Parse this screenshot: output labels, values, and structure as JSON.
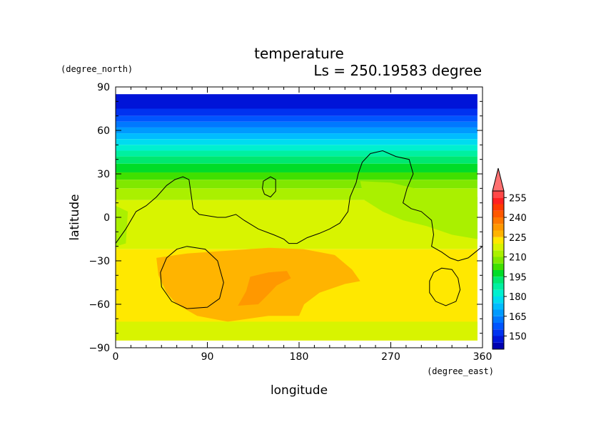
{
  "chart_data": {
    "type": "heatmap",
    "title": "temperature",
    "subtitle": "Ls = 250.19583 degree",
    "xlabel": "longitude",
    "ylabel": "latitude",
    "x_units": "(degree_east)",
    "y_units": "(degree_north)",
    "xlim": [
      0,
      360
    ],
    "ylim": [
      -90,
      90
    ],
    "x_ticks": [
      "0",
      "90",
      "180",
      "270",
      "360"
    ],
    "y_ticks": [
      "90",
      "60",
      "30",
      "0",
      "−30",
      "−60",
      "−90"
    ],
    "x_tick_values": [
      0,
      90,
      180,
      270,
      360
    ],
    "y_tick_values": [
      90,
      60,
      30,
      0,
      -30,
      -60,
      -90
    ],
    "colorbar": {
      "labels": [
        "255",
        "240",
        "225",
        "210",
        "195",
        "180",
        "165",
        "150"
      ],
      "label_values": [
        255,
        240,
        225,
        210,
        195,
        180,
        165,
        150
      ],
      "levels": [
        {
          "lo": 140,
          "hi": 145,
          "color": "#0000b0"
        },
        {
          "lo": 145,
          "hi": 150,
          "color": "#0014d8"
        },
        {
          "lo": 150,
          "hi": 155,
          "color": "#0032f0"
        },
        {
          "lo": 155,
          "hi": 160,
          "color": "#0055ff"
        },
        {
          "lo": 160,
          "hi": 165,
          "color": "#0078ff"
        },
        {
          "lo": 165,
          "hi": 170,
          "color": "#009aff"
        },
        {
          "lo": 170,
          "hi": 175,
          "color": "#00bcff"
        },
        {
          "lo": 175,
          "hi": 180,
          "color": "#00dcf0"
        },
        {
          "lo": 180,
          "hi": 185,
          "color": "#00f0d0"
        },
        {
          "lo": 185,
          "hi": 190,
          "color": "#00f0a0"
        },
        {
          "lo": 190,
          "hi": 195,
          "color": "#00e870"
        },
        {
          "lo": 195,
          "hi": 200,
          "color": "#00dc28"
        },
        {
          "lo": 200,
          "hi": 205,
          "color": "#40e000"
        },
        {
          "lo": 205,
          "hi": 210,
          "color": "#80e800"
        },
        {
          "lo": 210,
          "hi": 215,
          "color": "#aaf000"
        },
        {
          "lo": 215,
          "hi": 220,
          "color": "#d8f400"
        },
        {
          "lo": 220,
          "hi": 225,
          "color": "#ffe800"
        },
        {
          "lo": 225,
          "hi": 230,
          "color": "#ffb400"
        },
        {
          "lo": 230,
          "hi": 235,
          "color": "#ff9800"
        },
        {
          "lo": 235,
          "hi": 240,
          "color": "#ff7800"
        },
        {
          "lo": 240,
          "hi": 245,
          "color": "#ff5800"
        },
        {
          "lo": 245,
          "hi": 250,
          "color": "#ff3a00"
        },
        {
          "lo": 250,
          "hi": 255,
          "color": "#ff2020"
        },
        {
          "lo": 255,
          "hi": 260,
          "color": "#ff4848"
        }
      ],
      "extend_max_color": "#ff7070"
    },
    "latitude_bands": [
      {
        "lat_top": 85,
        "lat_bottom": 75,
        "color": "#0014d8"
      },
      {
        "lat_top": 75,
        "lat_bottom": 70,
        "color": "#0032f0"
      },
      {
        "lat_top": 70,
        "lat_bottom": 66,
        "color": "#0055ff"
      },
      {
        "lat_top": 66,
        "lat_bottom": 62,
        "color": "#0078ff"
      },
      {
        "lat_top": 62,
        "lat_bottom": 58,
        "color": "#009aff"
      },
      {
        "lat_top": 58,
        "lat_bottom": 54,
        "color": "#00bcff"
      },
      {
        "lat_top": 54,
        "lat_bottom": 50,
        "color": "#00dcf0"
      },
      {
        "lat_top": 50,
        "lat_bottom": 46,
        "color": "#00f0d0"
      },
      {
        "lat_top": 46,
        "lat_bottom": 42,
        "color": "#00f0a0"
      },
      {
        "lat_top": 42,
        "lat_bottom": 37,
        "color": "#00e870"
      },
      {
        "lat_top": 37,
        "lat_bottom": 31,
        "color": "#00dc28"
      },
      {
        "lat_top": 31,
        "lat_bottom": 26,
        "color": "#40e000"
      },
      {
        "lat_top": 26,
        "lat_bottom": 20,
        "color": "#80e800"
      },
      {
        "lat_top": 20,
        "lat_bottom": 12,
        "color": "#aaf000"
      },
      {
        "lat_top": 12,
        "lat_bottom": -22,
        "color": "#d8f400"
      },
      {
        "lat_top": -22,
        "lat_bottom": -85,
        "color": "#ffe800"
      }
    ],
    "regions": [
      {
        "name": "warm-region-south",
        "color": "#ffb400",
        "points": [
          [
            40,
            -28
          ],
          [
            70,
            -25
          ],
          [
            110,
            -23
          ],
          [
            150,
            -21
          ],
          [
            185,
            -22
          ],
          [
            215,
            -26
          ],
          [
            232,
            -36
          ],
          [
            240,
            -44
          ],
          [
            225,
            -46
          ],
          [
            200,
            -52
          ],
          [
            185,
            -60
          ],
          [
            180,
            -68
          ],
          [
            150,
            -68
          ],
          [
            110,
            -72
          ],
          [
            80,
            -68
          ],
          [
            60,
            -60
          ],
          [
            50,
            -52
          ],
          [
            42,
            -40
          ]
        ]
      },
      {
        "name": "warm-core",
        "color": "#ff9800",
        "points": [
          [
            132,
            -41
          ],
          [
            150,
            -38
          ],
          [
            168,
            -37
          ],
          [
            172,
            -42
          ],
          [
            158,
            -47
          ],
          [
            150,
            -53
          ],
          [
            140,
            -60
          ],
          [
            120,
            -61
          ],
          [
            128,
            -51
          ]
        ]
      },
      {
        "name": "greenish-east-region",
        "color": "#aaf000",
        "points": [
          [
            240,
            25
          ],
          [
            270,
            24
          ],
          [
            305,
            18
          ],
          [
            335,
            16
          ],
          [
            355,
            14
          ],
          [
            355,
            -15
          ],
          [
            330,
            -12
          ],
          [
            305,
            -6
          ],
          [
            282,
            -2
          ],
          [
            262,
            4
          ],
          [
            244,
            12
          ]
        ]
      },
      {
        "name": "greenish-west-region",
        "color": "#aaf000",
        "points": [
          [
            0,
            8
          ],
          [
            12,
            4
          ],
          [
            10,
            -18
          ],
          [
            0,
            -20
          ]
        ]
      },
      {
        "name": "cool-southern-rim",
        "color": "#d8f400",
        "points": [
          [
            0,
            -72
          ],
          [
            355,
            -72
          ],
          [
            355,
            -85
          ],
          [
            0,
            -85
          ]
        ]
      }
    ],
    "contours": [
      {
        "name": "main-contour",
        "closed": false,
        "points": [
          [
            0,
            -18
          ],
          [
            10,
            -8
          ],
          [
            20,
            4
          ],
          [
            30,
            8
          ],
          [
            40,
            14
          ],
          [
            50,
            22
          ],
          [
            58,
            26
          ],
          [
            66,
            28
          ],
          [
            72,
            26
          ],
          [
            74,
            16
          ],
          [
            76,
            6
          ],
          [
            82,
            2
          ],
          [
            100,
            0
          ],
          [
            108,
            0
          ],
          [
            118,
            2
          ],
          [
            126,
            -2
          ],
          [
            140,
            -8
          ],
          [
            155,
            -12
          ],
          [
            165,
            -15
          ],
          [
            170,
            -18
          ],
          [
            178,
            -18
          ],
          [
            188,
            -14
          ],
          [
            200,
            -11
          ],
          [
            210,
            -8
          ],
          [
            220,
            -4
          ],
          [
            228,
            4
          ],
          [
            230,
            14
          ],
          [
            236,
            24
          ],
          [
            238,
            30
          ],
          [
            242,
            38
          ],
          [
            250,
            44
          ],
          [
            262,
            46
          ],
          [
            275,
            42
          ],
          [
            288,
            40
          ],
          [
            292,
            30
          ],
          [
            286,
            20
          ],
          [
            282,
            10
          ],
          [
            290,
            6
          ],
          [
            300,
            4
          ],
          [
            310,
            -2
          ],
          [
            312,
            -12
          ],
          [
            310,
            -20
          ],
          [
            320,
            -24
          ],
          [
            328,
            -28
          ],
          [
            336,
            -30
          ],
          [
            346,
            -28
          ],
          [
            360,
            -20
          ]
        ]
      },
      {
        "name": "small-loop-contour",
        "closed": true,
        "points": [
          [
            145,
            25
          ],
          [
            152,
            28
          ],
          [
            157,
            26
          ],
          [
            157,
            18
          ],
          [
            152,
            14
          ],
          [
            146,
            16
          ],
          [
            144,
            20
          ]
        ]
      },
      {
        "name": "west-loop-contour",
        "closed": true,
        "points": [
          [
            70,
            -20
          ],
          [
            88,
            -22
          ],
          [
            100,
            -30
          ],
          [
            106,
            -45
          ],
          [
            102,
            -56
          ],
          [
            90,
            -62
          ],
          [
            70,
            -63
          ],
          [
            55,
            -58
          ],
          [
            45,
            -48
          ],
          [
            44,
            -38
          ],
          [
            50,
            -28
          ],
          [
            60,
            -22
          ]
        ]
      },
      {
        "name": "east-loop-contour",
        "closed": true,
        "points": [
          [
            320,
            -35
          ],
          [
            330,
            -36
          ],
          [
            336,
            -42
          ],
          [
            338,
            -50
          ],
          [
            334,
            -58
          ],
          [
            324,
            -61
          ],
          [
            314,
            -58
          ],
          [
            308,
            -52
          ],
          [
            308,
            -44
          ],
          [
            312,
            -38
          ]
        ]
      }
    ]
  }
}
